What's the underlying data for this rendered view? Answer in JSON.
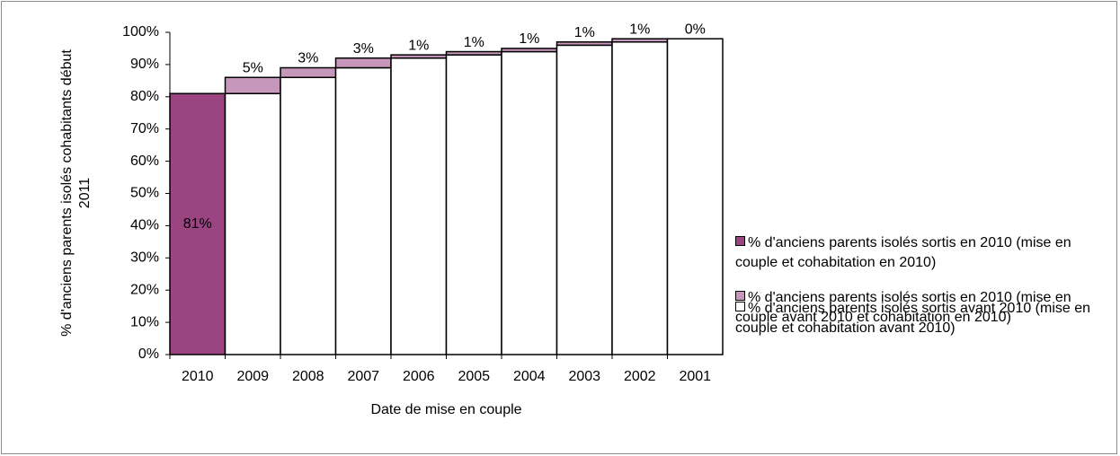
{
  "chart_data": {
    "type": "stacked-bar",
    "y_label": "% d'anciens parents isolés cohabitants début 2011",
    "x_label": "Date de mise en couple",
    "categories": [
      "2010",
      "2009",
      "2008",
      "2007",
      "2006",
      "2005",
      "2004",
      "2003",
      "2002",
      "2001"
    ],
    "series": [
      {
        "name": "% d'anciens parents isolés sortis en 2010 (mise en couple et cohabitation en 2010)",
        "color": "#9b4482",
        "label_color": "#ffffff",
        "values": [
          81,
          null,
          null,
          null,
          null,
          null,
          null,
          null,
          null,
          null
        ],
        "value_labels": [
          "81%",
          null,
          null,
          null,
          null,
          null,
          null,
          null,
          null,
          null
        ]
      },
      {
        "name": "% d'anciens parents isolés sortis en 2010 (mise en couple avant 2010 et cohabitation en 2010)",
        "color": "#c797bb",
        "label_color": "#000000",
        "values": [
          null,
          5,
          3,
          3,
          1,
          1,
          1,
          1,
          1,
          0
        ],
        "value_labels": [
          null,
          "5%",
          "3%",
          "3%",
          "1%",
          "1%",
          "1%",
          "1%",
          "1%",
          "0%"
        ]
      },
      {
        "name": "% d'anciens parents isolés sortis avant 2010 (mise en couple et cohabitation avant 2010)",
        "color": "#ffffff",
        "values": [
          null,
          81,
          86,
          89,
          92,
          93,
          94,
          96,
          97,
          98
        ]
      }
    ],
    "ylim": [
      0,
      100
    ],
    "yticks": [
      {
        "value": 0,
        "label": "0%"
      },
      {
        "value": 10,
        "label": "10%"
      },
      {
        "value": 20,
        "label": "20%"
      },
      {
        "value": 30,
        "label": "30%"
      },
      {
        "value": 40,
        "label": "40%"
      },
      {
        "value": 50,
        "label": "50%"
      },
      {
        "value": 60,
        "label": "60%"
      },
      {
        "value": 70,
        "label": "70%"
      },
      {
        "value": 80,
        "label": "80%"
      },
      {
        "value": 90,
        "label": "90%"
      },
      {
        "value": 100,
        "label": "100%"
      }
    ]
  }
}
